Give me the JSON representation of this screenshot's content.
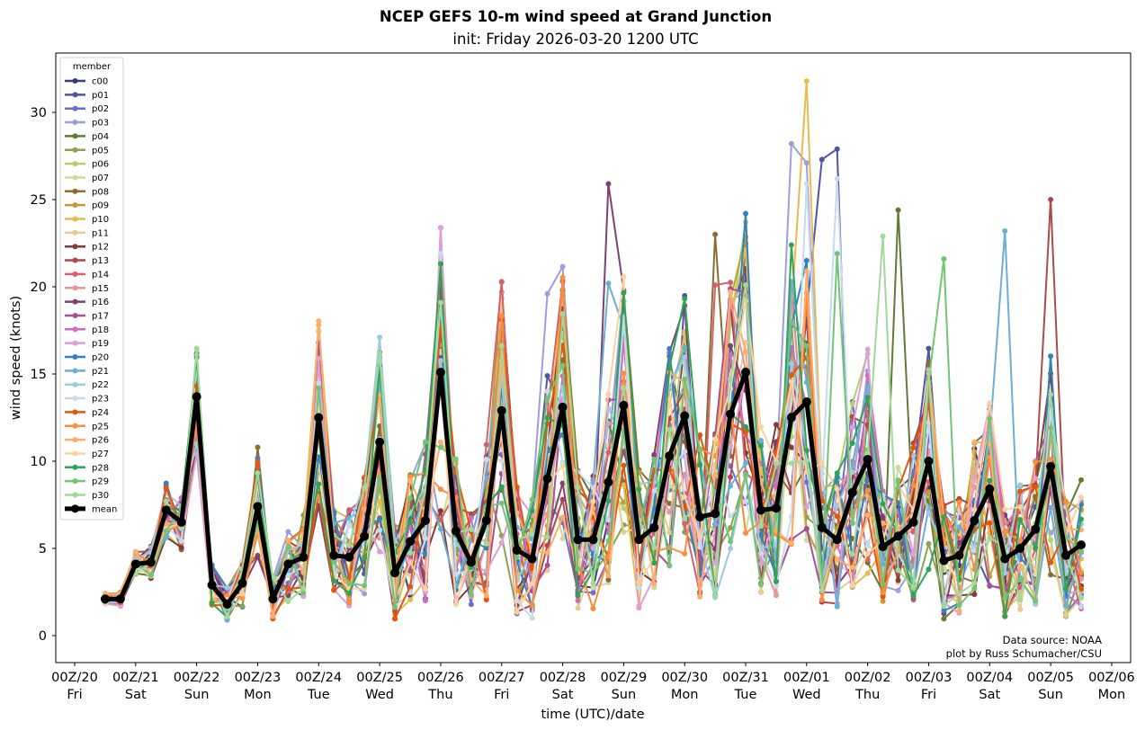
{
  "chart_data": {
    "type": "line",
    "title": "NCEP GEFS 10-m wind speed at Grand Junction",
    "subtitle": "init: Friday 2026-03-20 1200 UTC",
    "xlabel": "time (UTC)/date",
    "ylabel": "wind speed (knots)",
    "ylim": [
      -1.5,
      33.3
    ],
    "xlim_days": [
      -0.25,
      17.0
    ],
    "x_start_label": "12Z/20",
    "x_step_hours": 6,
    "yticks": [
      0,
      5,
      10,
      15,
      20,
      25,
      30
    ],
    "xticks": [
      {
        "line1": "00Z/20",
        "line2": "Fri"
      },
      {
        "line1": "00Z/21",
        "line2": "Sat"
      },
      {
        "line1": "00Z/22",
        "line2": "Sun"
      },
      {
        "line1": "00Z/23",
        "line2": "Mon"
      },
      {
        "line1": "00Z/24",
        "line2": "Tue"
      },
      {
        "line1": "00Z/25",
        "line2": "Wed"
      },
      {
        "line1": "00Z/26",
        "line2": "Thu"
      },
      {
        "line1": "00Z/27",
        "line2": "Fri"
      },
      {
        "line1": "00Z/28",
        "line2": "Sat"
      },
      {
        "line1": "00Z/29",
        "line2": "Sun"
      },
      {
        "line1": "00Z/30",
        "line2": "Mon"
      },
      {
        "line1": "00Z/31",
        "line2": "Tue"
      },
      {
        "line1": "00Z/01",
        "line2": "Wed"
      },
      {
        "line1": "00Z/02",
        "line2": "Thu"
      },
      {
        "line1": "00Z/03",
        "line2": "Fri"
      },
      {
        "line1": "00Z/04",
        "line2": "Sat"
      },
      {
        "line1": "00Z/05",
        "line2": "Sun"
      },
      {
        "line1": "00Z/06",
        "line2": "Mon"
      }
    ],
    "legend_title": "member",
    "legend_position": "top-left",
    "grid": false,
    "mean": {
      "name": "mean",
      "color": "#000000",
      "values": [
        2.1,
        2.1,
        4.1,
        4.2,
        7.2,
        6.5,
        13.7,
        2.9,
        1.8,
        3.0,
        7.4,
        2.1,
        4.1,
        4.5,
        12.5,
        4.6,
        4.5,
        5.7,
        11.1,
        3.6,
        5.4,
        6.6,
        15.1,
        6.0,
        4.2,
        6.6,
        12.9,
        4.9,
        4.4,
        9.0,
        13.1,
        5.5,
        5.5,
        8.8,
        13.2,
        5.5,
        6.2,
        10.3,
        12.6,
        6.8,
        7.0,
        12.7,
        15.1,
        7.2,
        7.3,
        12.5,
        13.4,
        6.2,
        5.5,
        8.2,
        10.1,
        5.1,
        5.7,
        6.5,
        10.0,
        4.3,
        4.6,
        6.6,
        8.4,
        4.4,
        5.0,
        6.1,
        9.7,
        4.6,
        5.2
      ]
    },
    "series": [
      {
        "name": "c00",
        "color": "#393b79"
      },
      {
        "name": "p01",
        "color": "#5254a3"
      },
      {
        "name": "p02",
        "color": "#6b6ecf"
      },
      {
        "name": "p03",
        "color": "#9c9ede"
      },
      {
        "name": "p04",
        "color": "#637939"
      },
      {
        "name": "p05",
        "color": "#8ca252"
      },
      {
        "name": "p06",
        "color": "#b5cf6b"
      },
      {
        "name": "p07",
        "color": "#cedb9c"
      },
      {
        "name": "p08",
        "color": "#8c6d31"
      },
      {
        "name": "p09",
        "color": "#bd9e39"
      },
      {
        "name": "p10",
        "color": "#e7ba52"
      },
      {
        "name": "p11",
        "color": "#e7cb94"
      },
      {
        "name": "p12",
        "color": "#843c39"
      },
      {
        "name": "p13",
        "color": "#ad494a"
      },
      {
        "name": "p14",
        "color": "#d6616b"
      },
      {
        "name": "p15",
        "color": "#e7969c"
      },
      {
        "name": "p16",
        "color": "#7b4173"
      },
      {
        "name": "p17",
        "color": "#a55194"
      },
      {
        "name": "p18",
        "color": "#ce6dbd"
      },
      {
        "name": "p19",
        "color": "#de9ed6"
      },
      {
        "name": "p20",
        "color": "#3182bd"
      },
      {
        "name": "p21",
        "color": "#6baed6"
      },
      {
        "name": "p22",
        "color": "#9ecae1"
      },
      {
        "name": "p23",
        "color": "#c6dbef"
      },
      {
        "name": "p24",
        "color": "#e6550d"
      },
      {
        "name": "p25",
        "color": "#fd8d3c"
      },
      {
        "name": "p26",
        "color": "#fdae6b"
      },
      {
        "name": "p27",
        "color": "#fdd0a2"
      },
      {
        "name": "p28",
        "color": "#31a354"
      },
      {
        "name": "p29",
        "color": "#74c476"
      },
      {
        "name": "p30",
        "color": "#a1d99b"
      }
    ],
    "member_peaks": [
      {
        "member": "p10",
        "index": 46,
        "value": 31.8
      },
      {
        "member": "p03",
        "index": 45,
        "value": 28.2
      },
      {
        "member": "p01",
        "index": 48,
        "value": 27.9
      },
      {
        "member": "p01",
        "index": 47,
        "value": 27.3
      },
      {
        "member": "p03",
        "index": 46,
        "value": 27.1
      },
      {
        "member": "p23",
        "index": 48,
        "value": 26.2
      },
      {
        "member": "p16",
        "index": 33,
        "value": 25.9
      },
      {
        "member": "p23",
        "index": 46,
        "value": 25.9
      },
      {
        "member": "p13",
        "index": 62,
        "value": 25.0
      },
      {
        "member": "p04",
        "index": 52,
        "value": 24.4
      },
      {
        "member": "p21",
        "index": 59,
        "value": 23.2
      },
      {
        "member": "p08",
        "index": 40,
        "value": 23.0
      },
      {
        "member": "p30",
        "index": 51,
        "value": 22.9
      },
      {
        "member": "p28",
        "index": 45,
        "value": 22.4
      },
      {
        "member": "p29",
        "index": 48,
        "value": 21.9
      },
      {
        "member": "p29",
        "index": 55,
        "value": 21.6
      },
      {
        "member": "p20",
        "index": 46,
        "value": 21.5
      },
      {
        "member": "p14",
        "index": 40,
        "value": 20.1
      },
      {
        "member": "p21",
        "index": 33,
        "value": 20.2
      },
      {
        "member": "p04",
        "index": 30,
        "value": 19.8
      },
      {
        "member": "p16",
        "index": 34,
        "value": 19.8
      },
      {
        "member": "p03",
        "index": 29,
        "value": 19.6
      },
      {
        "member": "p30",
        "index": 22,
        "value": 19.1
      },
      {
        "member": "p10",
        "index": 14,
        "value": 17.8
      },
      {
        "member": "p22",
        "index": 18,
        "value": 17.1
      },
      {
        "member": "p21",
        "index": 26,
        "value": 17.4
      },
      {
        "member": "p02",
        "index": 6,
        "value": 16.2
      },
      {
        "member": "p08",
        "index": 10,
        "value": 10.8
      }
    ]
  },
  "annotation": {
    "line1": "Data source: NOAA",
    "line2": "plot by Russ Schumacher/CSU"
  }
}
